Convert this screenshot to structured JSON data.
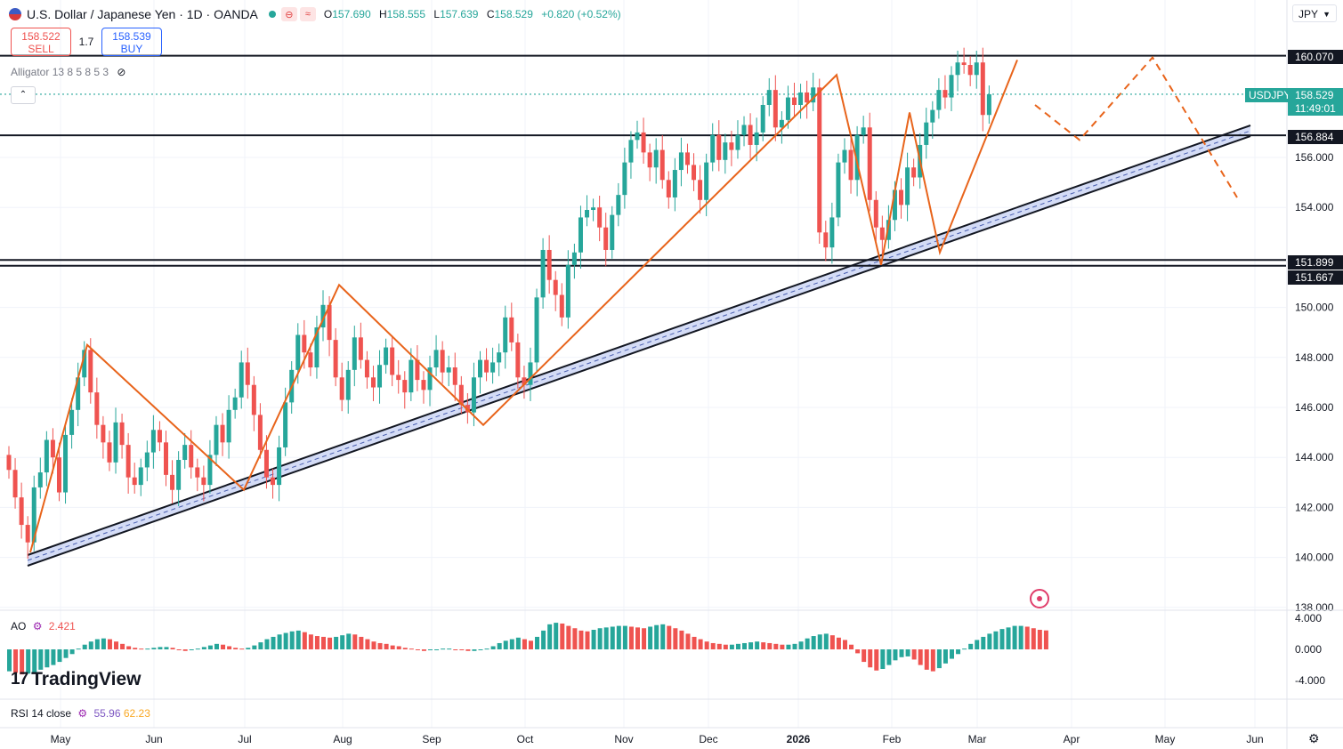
{
  "header": {
    "symbol_title": "U.S. Dollar / Japanese Yen · 1D · OANDA",
    "chip_a": "⊖",
    "chip_b": "≈",
    "open_label": "O",
    "open": "157.690",
    "high_label": "H",
    "high": "158.555",
    "low_label": "L",
    "low": "157.639",
    "close_label": "C",
    "close": "158.529",
    "change": "+0.820 (+0.52%)"
  },
  "trade": {
    "sell_price": "158.522",
    "sell_label": "SELL",
    "spread": "1.7",
    "buy_price": "158.539",
    "buy_label": "BUY"
  },
  "indicators": {
    "alligator": "Alligator 13 8 5 8 5 3",
    "ao_label": "AO",
    "ao_value": "2.421",
    "rsi_label": "RSI 14 close",
    "rsi_value": "55.96",
    "rsi_ma": "62.23"
  },
  "currency_select": "JPY",
  "brand": "TradingView",
  "colors": {
    "up": "#26a69a",
    "down": "#ef5350",
    "pattern": "#e8641b",
    "channel": "#b8c4f0",
    "level": "#131722"
  },
  "price_badges": {
    "symbol": "USDJPY",
    "last": "158.529",
    "countdown": "11:49:01",
    "levels": [
      "160.070",
      "156.884",
      "151.899",
      "151.667"
    ]
  },
  "chart_data": {
    "type": "candlestick",
    "title": "U.S. Dollar / Japanese Yen · 1D · OANDA",
    "y_axis_ticks": [
      "156.000",
      "154.000",
      "150.000",
      "148.000",
      "146.000",
      "144.000",
      "142.000",
      "140.000",
      "138.000"
    ],
    "ylim": [
      137.5,
      162.2
    ],
    "x_axis_labels": [
      "May",
      "Jun",
      "Jul",
      "Aug",
      "Sep",
      "Oct",
      "Nov",
      "Dec",
      "2026",
      "Feb",
      "Mar",
      "Apr",
      "May",
      "Jun"
    ],
    "horizontal_levels": [
      160.07,
      156.884,
      151.899,
      151.667
    ],
    "last_price": 158.529,
    "closes": [
      143.5,
      142.4,
      141.3,
      140.6,
      142.8,
      143.4,
      144.7,
      144.0,
      142.6,
      144.9,
      145.9,
      147.2,
      148.3,
      146.6,
      145.3,
      144.6,
      143.8,
      145.4,
      144.5,
      143.2,
      142.9,
      143.6,
      144.2,
      145.1,
      144.6,
      143.3,
      142.7,
      143.9,
      144.5,
      143.6,
      143.2,
      142.9,
      144.1,
      145.3,
      144.6,
      145.9,
      146.4,
      147.8,
      146.9,
      145.7,
      144.3,
      143.2,
      142.9,
      144.4,
      146.2,
      147.5,
      148.9,
      148.2,
      147.6,
      149.2,
      150.1,
      148.7,
      147.2,
      146.3,
      147.5,
      148.8,
      147.9,
      147.2,
      146.8,
      147.7,
      148.4,
      147.3,
      147.1,
      146.6,
      147.9,
      147.1,
      146.7,
      147.6,
      148.3,
      147.4,
      147.6,
      146.9,
      146.1,
      145.8,
      147.2,
      147.9,
      147.4,
      147.8,
      148.2,
      149.6,
      148.6,
      147.2,
      146.9,
      147.8,
      150.4,
      152.3,
      151.1,
      150.5,
      149.6,
      151.7,
      152.2,
      153.6,
      153.9,
      154.0,
      153.2,
      152.3,
      153.7,
      154.5,
      155.8,
      156.7,
      157.0,
      156.2,
      155.6,
      156.3,
      155.1,
      154.4,
      155.5,
      156.2,
      155.7,
      155.1,
      154.3,
      155.8,
      156.9,
      155.9,
      156.6,
      156.3,
      156.9,
      157.3,
      156.5,
      157.0,
      158.1,
      158.7,
      157.2,
      157.5,
      158.4,
      158.1,
      158.6,
      158.2,
      158.8,
      153.0,
      152.4,
      153.6,
      155.8,
      156.3,
      155.1,
      156.9,
      157.2,
      154.3,
      153.2,
      152.7,
      153.5,
      154.7,
      154.1,
      155.6,
      155.2,
      156.5,
      157.4,
      157.9,
      158.7,
      158.4,
      159.3,
      159.8,
      159.7,
      159.3,
      159.8,
      157.7,
      158.529
    ],
    "pattern_points": [
      {
        "date": "May 1",
        "price": 140.2
      },
      {
        "date": "May 10",
        "price": 148.5
      },
      {
        "date": "Jul 1",
        "price": 142.7
      },
      {
        "date": "Jul 31",
        "price": 150.9
      },
      {
        "date": "Sep 16",
        "price": 145.3
      },
      {
        "date": "Jan 14",
        "price": 159.3
      },
      {
        "date": "Jan 26",
        "price": 151.7
      },
      {
        "date": "Feb 7",
        "price": 157.8
      },
      {
        "date": "Feb 14",
        "price": 152.2
      },
      {
        "date": "Mar 11",
        "price": 159.9
      }
    ],
    "projection_points": [
      {
        "date": "Mar 20",
        "price": 158.1
      },
      {
        "date": "Mar 31",
        "price": 156.7
      },
      {
        "date": "Apr 27",
        "price": 160.0
      },
      {
        "date": "May 24",
        "price": 154.4
      }
    ],
    "ao": {
      "label": "AO",
      "last": 2.421,
      "ticks": [
        "4.000",
        "0.000",
        "-4.000"
      ],
      "ylim": [
        -6.5,
        4.6
      ],
      "values": [
        -2.8,
        -3.0,
        -3.2,
        -3.1,
        -2.9,
        -2.6,
        -2.3,
        -2.0,
        -1.6,
        -1.1,
        -0.6,
        0.1,
        0.6,
        1.0,
        1.3,
        1.4,
        1.3,
        1.0,
        0.7,
        0.4,
        0.2,
        0.1,
        0.1,
        0.2,
        0.3,
        0.3,
        0.2,
        0.0,
        -0.2,
        -0.1,
        0.1,
        0.3,
        0.5,
        0.7,
        0.6,
        0.4,
        0.2,
        0.1,
        0.2,
        0.5,
        0.9,
        1.3,
        1.6,
        1.9,
        2.1,
        2.3,
        2.4,
        2.2,
        1.9,
        1.7,
        1.6,
        1.5,
        1.6,
        1.8,
        2.0,
        1.9,
        1.6,
        1.3,
        1.0,
        0.8,
        0.7,
        0.5,
        0.4,
        0.2,
        0.1,
        -0.1,
        -0.2,
        -0.1,
        0.0,
        0.1,
        0.1,
        0.0,
        -0.1,
        -0.2,
        -0.2,
        -0.1,
        0.1,
        0.4,
        0.8,
        1.1,
        1.3,
        1.5,
        1.3,
        1.1,
        1.6,
        2.4,
        3.2,
        3.4,
        3.3,
        3.0,
        2.7,
        2.4,
        2.3,
        2.5,
        2.7,
        2.8,
        2.9,
        3.0,
        3.0,
        2.9,
        2.8,
        2.7,
        2.9,
        3.1,
        3.2,
        3.0,
        2.7,
        2.4,
        2.0,
        1.6,
        1.3,
        1.0,
        0.8,
        0.7,
        0.6,
        0.6,
        0.7,
        0.8,
        0.9,
        1.0,
        0.9,
        0.8,
        0.7,
        0.6,
        0.6,
        0.7,
        1.0,
        1.4,
        1.7,
        1.9,
        2.0,
        1.8,
        1.5,
        1.2,
        0.6,
        -0.5,
        -1.6,
        -2.3,
        -2.7,
        -2.5,
        -2.0,
        -1.4,
        -1.0,
        -0.9,
        -1.3,
        -2.0,
        -2.6,
        -2.8,
        -2.4,
        -1.8,
        -1.2,
        -0.6,
        0.1,
        0.7,
        1.2,
        1.6,
        2.0,
        2.3,
        2.6,
        2.8,
        3.0,
        3.0,
        2.9,
        2.7,
        2.5,
        2.421
      ]
    },
    "rsi": {
      "label": "RSI 14 close",
      "value": 55.96,
      "ma": 62.23
    }
  }
}
